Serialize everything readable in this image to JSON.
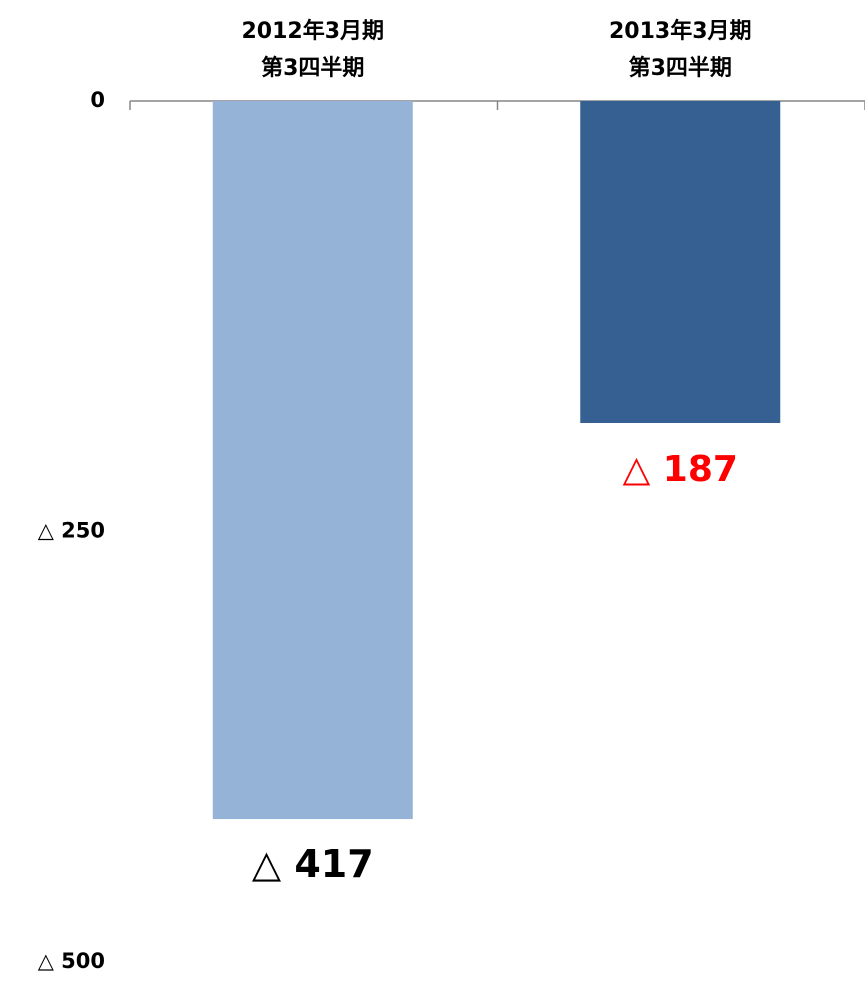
{
  "chart_data": {
    "type": "bar",
    "categories": [
      [
        "2012年3月期",
        "第3四半期"
      ],
      [
        "2013年3月期",
        "第3四半期"
      ]
    ],
    "values": [
      -417,
      -187
    ],
    "value_labels": [
      "△ 417",
      "△ 187"
    ],
    "bar_colors": [
      "#95b3d7",
      "#366092"
    ],
    "label_colors": [
      "#000000",
      "#ff0000"
    ],
    "ylim": [
      -500,
      0
    ],
    "yticks": [
      0,
      -250,
      -500
    ],
    "ytick_labels": [
      "0",
      "△ 250",
      "△ 500"
    ],
    "x_axis_position": "top",
    "grid": false,
    "legend": "none"
  }
}
